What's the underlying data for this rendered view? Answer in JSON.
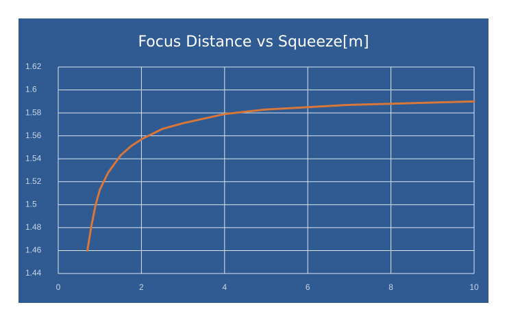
{
  "chart_data": {
    "type": "line",
    "title": "Focus Distance vs Squeeze[m]",
    "x": [
      0.7,
      0.8,
      0.9,
      1.0,
      1.2,
      1.5,
      1.75,
      2.0,
      2.5,
      3.0,
      4.0,
      5.0,
      6.0,
      7.0,
      8.0,
      9.0,
      10.0
    ],
    "series": [
      {
        "name": "Squeeze",
        "color": "#d9773a",
        "values": [
          1.46,
          1.482,
          1.5,
          1.513,
          1.528,
          1.543,
          1.551,
          1.557,
          1.566,
          1.571,
          1.579,
          1.583,
          1.585,
          1.587,
          1.588,
          1.589,
          1.59
        ]
      }
    ],
    "xlim": [
      0,
      10
    ],
    "xticks": [
      0,
      2,
      4,
      6,
      8,
      10
    ],
    "ylim": [
      1.44,
      1.62
    ],
    "yticks": [
      1.44,
      1.46,
      1.48,
      1.5,
      1.52,
      1.54,
      1.56,
      1.58,
      1.6,
      1.62
    ],
    "grid": true
  }
}
